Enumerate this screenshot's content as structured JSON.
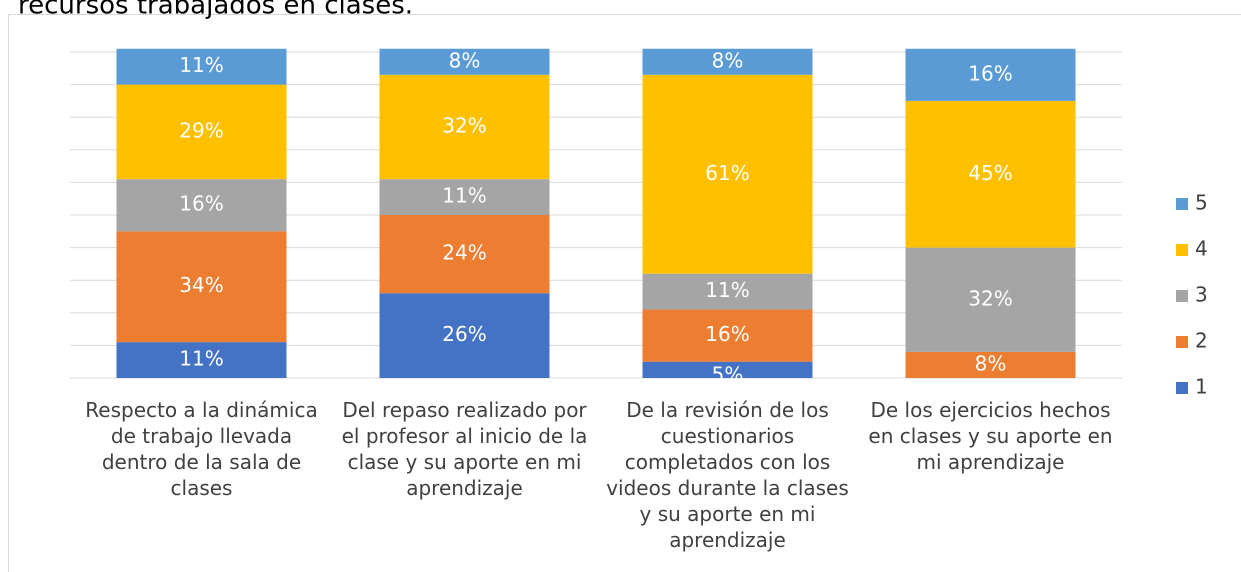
{
  "chart_data": {
    "type": "stacked_bar_100",
    "title": "recursos trabajados en clases.",
    "categories": [
      "Respecto a la dinámica de trabajo llevada dentro de la sala de clases",
      "Del repaso realizado por el profesor al inicio de la clase y su aporte en mi aprendizaje",
      "De la revisión de los cuestionarios completados con los videos durante la clases y su aporte en mi aprendizaje",
      "De los ejercicios hechos en clases y su aporte en mi aprendizaje"
    ],
    "series": [
      {
        "name": "1",
        "color": "#4472c4",
        "values": [
          11,
          26,
          5,
          0
        ],
        "value_labels": [
          "11%",
          "26%",
          "5%",
          null
        ]
      },
      {
        "name": "2",
        "color": "#ed7d31",
        "values": [
          34,
          24,
          16,
          8
        ],
        "value_labels": [
          "34%",
          "24%",
          "16%",
          "8%"
        ]
      },
      {
        "name": "3",
        "color": "#a5a5a5",
        "values": [
          16,
          11,
          11,
          32
        ],
        "value_labels": [
          "16%",
          "11%",
          "11%",
          "32%"
        ]
      },
      {
        "name": "4",
        "color": "#ffc000",
        "values": [
          29,
          32,
          61,
          45
        ],
        "value_labels": [
          "29%",
          "32%",
          "61%",
          "45%"
        ]
      },
      {
        "name": "5",
        "color": "#5b9bd5",
        "values": [
          11,
          8,
          8,
          16
        ],
        "value_labels": [
          "11%",
          "8%",
          "8%",
          "16%"
        ]
      }
    ],
    "ylim": [
      0,
      100
    ],
    "yticks": [
      0,
      10,
      20,
      30,
      40,
      50,
      60,
      70,
      80,
      90,
      100
    ],
    "grid": true,
    "legend": "right"
  }
}
